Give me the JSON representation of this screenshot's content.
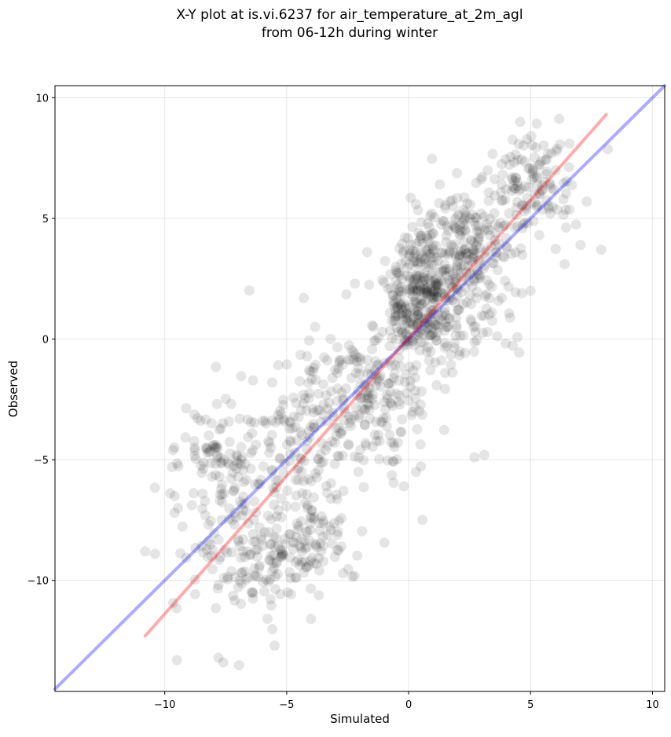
{
  "chart_data": {
    "type": "scatter",
    "title_line1": "X-Y plot at is.vi.6237 for air_temperature_at_2m_agl",
    "title_line2": "from 06-12h during winter",
    "xlabel": "Simulated",
    "ylabel": "Observed",
    "xlim": [
      -14.5,
      10.5
    ],
    "ylim": [
      -14.6,
      10.5
    ],
    "xticks": [
      -10,
      -5,
      0,
      5,
      10
    ],
    "yticks": [
      -10,
      -5,
      0,
      5,
      10
    ],
    "xtick_labels": [
      "−10",
      "−5",
      "0",
      "5",
      "10"
    ],
    "ytick_labels": [
      "−10",
      "−5",
      "0",
      "5",
      "10"
    ],
    "grid": true,
    "point_color": "#000000",
    "point_opacity": 0.1,
    "identity_line": {
      "color": "#0000ff",
      "opacity": 0.33,
      "x": [
        -14.5,
        10.5
      ],
      "y": [
        -14.5,
        10.5
      ]
    },
    "fit_line": {
      "color": "#ff0000",
      "opacity": 0.33,
      "x": [
        -10.8,
        8.1
      ],
      "y": [
        -12.3,
        9.3
      ]
    },
    "clusters": [
      {
        "cx": 0.5,
        "cy": 1.5,
        "sx": 0.8,
        "sy": 1.3,
        "n": 330
      },
      {
        "cx": 2.3,
        "cy": 4.0,
        "sx": 1.0,
        "sy": 1.4,
        "n": 220
      },
      {
        "cx": 5.0,
        "cy": 6.5,
        "sx": 0.9,
        "sy": 1.1,
        "n": 120
      },
      {
        "cx": -1.5,
        "cy": -2.5,
        "sx": 1.2,
        "sy": 1.5,
        "n": 170
      },
      {
        "cx": -4.5,
        "cy": -4.0,
        "sx": 1.6,
        "sy": 1.8,
        "n": 180
      },
      {
        "cx": -6.5,
        "cy": -8.8,
        "sx": 1.3,
        "sy": 1.5,
        "n": 180
      },
      {
        "cx": -8.0,
        "cy": -5.0,
        "sx": 0.8,
        "sy": 1.0,
        "n": 70
      },
      {
        "cx": -3.5,
        "cy": -8.5,
        "sx": 0.8,
        "sy": 1.0,
        "n": 60
      },
      {
        "cx": 3.0,
        "cy": 1.0,
        "sx": 0.8,
        "sy": 0.8,
        "n": 40
      }
    ],
    "points": [
      [
        -10.8,
        -8.8
      ],
      [
        -10.4,
        -8.9
      ],
      [
        -4.3,
        1.7
      ],
      [
        -1.7,
        3.6
      ],
      [
        7.9,
        3.7
      ],
      [
        6.6,
        8.1
      ],
      [
        -9.5,
        -13.3
      ],
      [
        -7.6,
        -13.4
      ],
      [
        -5.5,
        -12.7
      ],
      [
        -7.8,
        -13.2
      ],
      [
        3.1,
        -4.8
      ],
      [
        2.7,
        -4.9
      ],
      [
        -0.2,
        -6.1
      ],
      [
        -2.2,
        2.3
      ],
      [
        5.0,
        2.0
      ],
      [
        7.3,
        5.7
      ],
      [
        -4.0,
        -11.6
      ],
      [
        -9.6,
        -7.2
      ],
      [
        6.4,
        3.1
      ],
      [
        0.3,
        -5.5
      ]
    ]
  }
}
